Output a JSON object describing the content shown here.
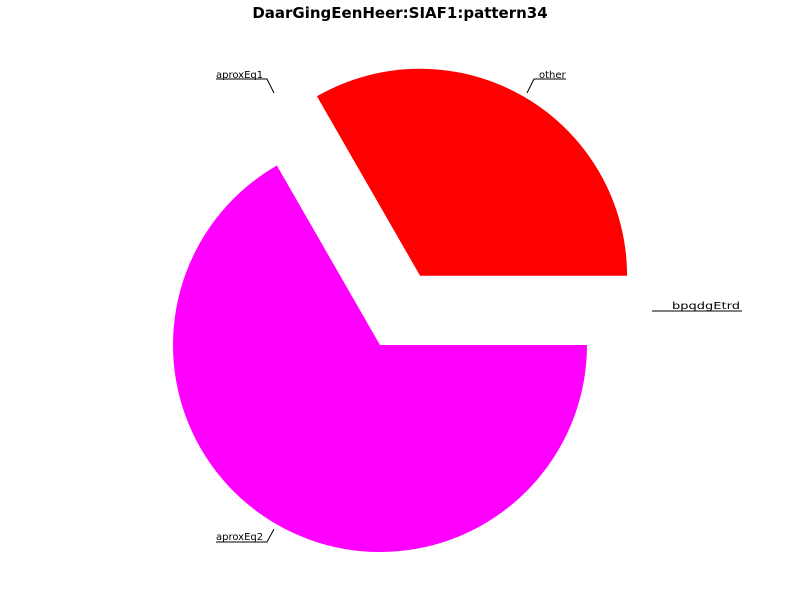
{
  "chart_data": {
    "type": "pie",
    "title": "DaarGingEenHeer:SIAF1:pattern34",
    "slices": [
      {
        "label": "other",
        "value": 33.3,
        "color": "#ff0000",
        "exploded": true
      },
      {
        "label": "aproxEq1",
        "value": 0.0,
        "color": "#ffffff",
        "exploded": true
      },
      {
        "label": "aproxEq2",
        "value": 66.7,
        "color": "#ff00ff",
        "exploded": false
      },
      {
        "label": "",
        "value": 0.0,
        "color": "#ffffff",
        "exploded": true
      }
    ],
    "overlapping_zero_labels_text": "bpqdgEtrd",
    "legend": "none",
    "grid": false
  }
}
